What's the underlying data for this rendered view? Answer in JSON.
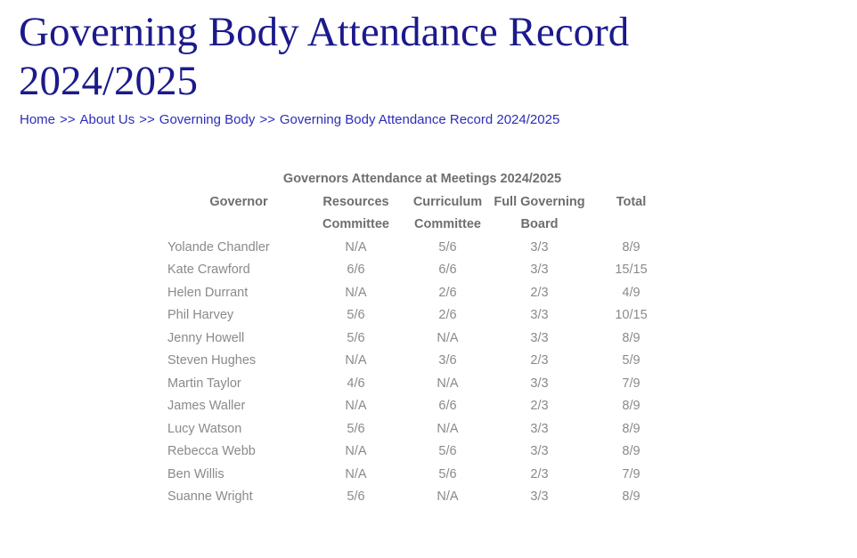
{
  "page": {
    "title": "Governing Body Attendance Record 2024/2025"
  },
  "breadcrumb": {
    "separator": ">>",
    "items": [
      "Home",
      "About Us",
      "Governing Body",
      "Governing Body Attendance Record 2024/2025"
    ]
  },
  "table": {
    "caption": "Governors Attendance at Meetings 2024/2025",
    "columns": [
      "Governor",
      "Resources Committee",
      "Curriculum Committee",
      "Full Governing Board",
      "Total"
    ],
    "rows": [
      [
        "Yolande Chandler",
        "N/A",
        "5/6",
        "3/3",
        "8/9"
      ],
      [
        "Kate Crawford",
        "6/6",
        "6/6",
        "3/3",
        "15/15"
      ],
      [
        "Helen Durrant",
        "N/A",
        "2/6",
        "2/3",
        "4/9"
      ],
      [
        "Phil Harvey",
        "5/6",
        "2/6",
        "3/3",
        "10/15"
      ],
      [
        "Jenny Howell",
        "5/6",
        "N/A",
        "3/3",
        "8/9"
      ],
      [
        "Steven Hughes",
        "N/A",
        "3/6",
        "2/3",
        "5/9"
      ],
      [
        "Martin Taylor",
        "4/6",
        "N/A",
        "3/3",
        "7/9"
      ],
      [
        "James Waller",
        "N/A",
        "6/6",
        "2/3",
        "8/9"
      ],
      [
        "Lucy Watson",
        "5/6",
        "N/A",
        "3/3",
        "8/9"
      ],
      [
        "Rebecca Webb",
        "N/A",
        "5/6",
        "3/3",
        "8/9"
      ],
      [
        "Ben Willis",
        "N/A",
        "5/6",
        "2/3",
        "7/9"
      ],
      [
        "Suanne Wright",
        "5/6",
        "N/A",
        "3/3",
        "8/9"
      ]
    ]
  },
  "colors": {
    "title_navy": "#1b1a8c",
    "breadcrumb_blue": "#2d2db8",
    "table_header_gray": "#6e6e6e",
    "table_cell_gray": "#8a8a8a",
    "background": "#ffffff"
  }
}
